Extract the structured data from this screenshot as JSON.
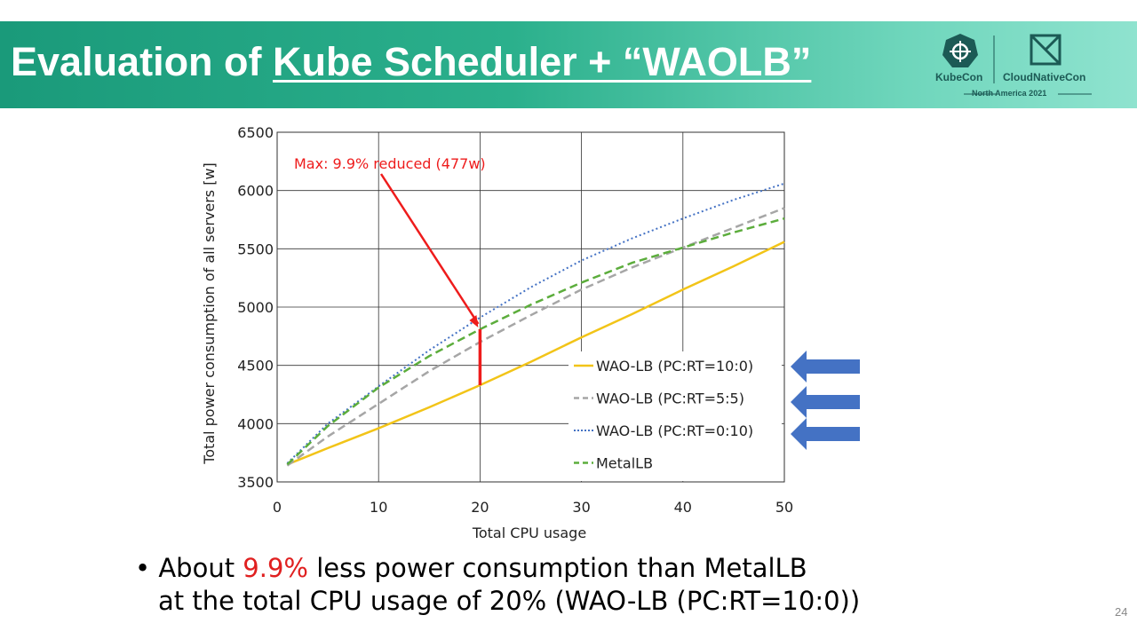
{
  "header": {
    "title_prefix": "Evaluation of ",
    "title_underlined": "Kube Scheduler + “WAOLB”",
    "logo_left": "KubeCon",
    "logo_right": "CloudNativeCon",
    "logo_sub": "North America 2021"
  },
  "chart_data": {
    "type": "line",
    "xlabel": "Total CPU usage",
    "ylabel": "Total power consumption of all servers [w]",
    "xlim": [
      0,
      50
    ],
    "ylim": [
      3500,
      6500
    ],
    "xticks": [
      0,
      10,
      20,
      30,
      40,
      50
    ],
    "yticks": [
      3500,
      4000,
      4500,
      5000,
      5500,
      6000,
      6500
    ],
    "grid": true,
    "legend_position": "bottom-right",
    "x": [
      1,
      5,
      10,
      15,
      20,
      25,
      30,
      35,
      40,
      45,
      50
    ],
    "series": [
      {
        "name": "WAO-LB (PC:RT=10:0)",
        "color": "#f2c418",
        "style": "solid",
        "values": [
          3650,
          3790,
          3960,
          4140,
          4330,
          4530,
          4740,
          4940,
          5150,
          5350,
          5560
        ]
      },
      {
        "name": "WAO-LB (PC:RT=5:5)",
        "color": "#a6a6a6",
        "style": "dash",
        "values": [
          3640,
          3890,
          4170,
          4450,
          4700,
          4930,
          5150,
          5340,
          5510,
          5680,
          5850
        ]
      },
      {
        "name": "WAO-LB (PC:RT=0:10)",
        "color": "#4472c4",
        "style": "dot",
        "values": [
          3660,
          4000,
          4320,
          4630,
          4910,
          5170,
          5400,
          5590,
          5760,
          5920,
          6060
        ]
      },
      {
        "name": "MetalLB",
        "color": "#5cad3c",
        "style": "dash",
        "values": [
          3650,
          3980,
          4310,
          4580,
          4810,
          5020,
          5210,
          5380,
          5510,
          5640,
          5760
        ]
      }
    ],
    "annotation": {
      "text": "Max: 9.9% reduced (477w)",
      "x": 20,
      "y_top": 4810,
      "y_bottom": 4330,
      "color": "#ee1c1c"
    }
  },
  "bullet": {
    "line1_pre": "About ",
    "line1_red": "9.9%",
    "line1_post": " less power consumption than MetalLB",
    "line2": "at the total CPU usage of 20% (WAO-LB (PC:RT=10:0))"
  },
  "page_number": "24"
}
